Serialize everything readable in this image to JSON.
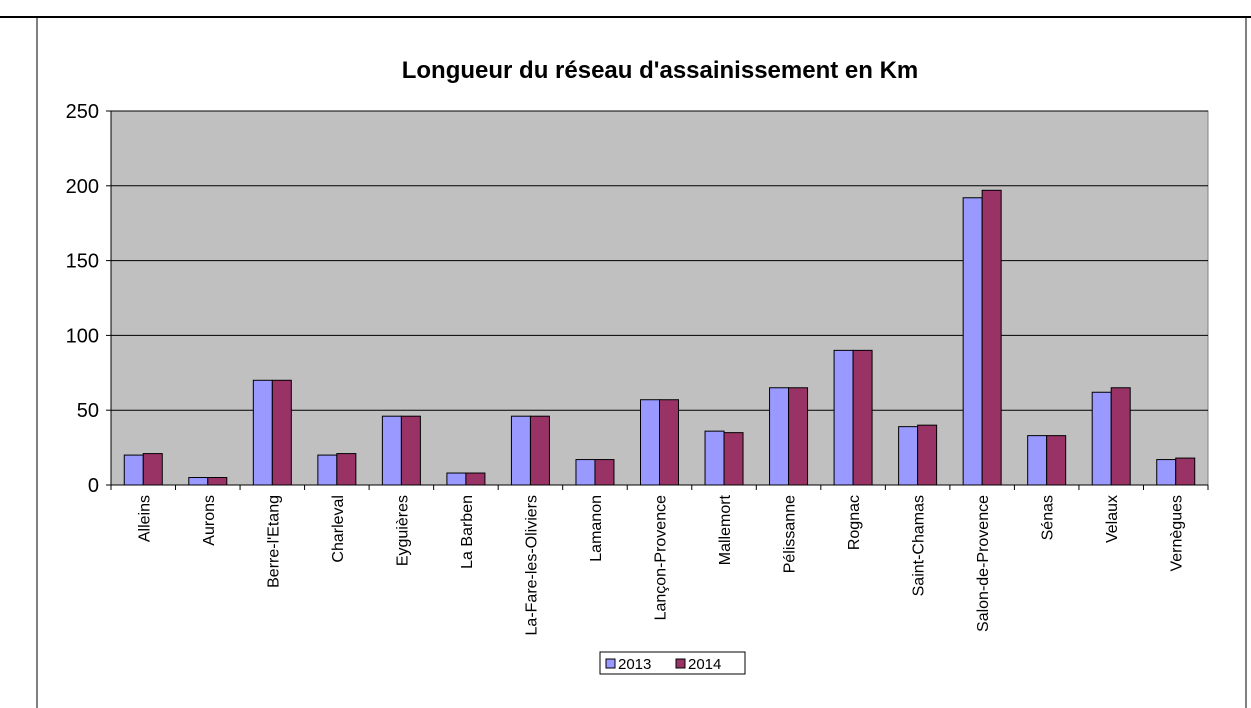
{
  "chart_data": {
    "type": "bar",
    "title": "Longueur du réseau d'assainissement en Km",
    "categories": [
      "Alleins",
      "Aurons",
      "Berre-l'Etang",
      "Charleval",
      "Eyguières",
      "La Barben",
      "La-Fare-les-Oliviers",
      "Lamanon",
      "Lançon-Provence",
      "Mallemort",
      "Pélissanne",
      "Rognac",
      "Saint-Chamas",
      "Salon-de-Provence",
      "Sénas",
      "Velaux",
      "Vernègues"
    ],
    "series": [
      {
        "name": "2013",
        "color": "#9999ff",
        "values": [
          20,
          5,
          70,
          20,
          46,
          8,
          46,
          17,
          57,
          36,
          65,
          90,
          39,
          192,
          33,
          62,
          17
        ]
      },
      {
        "name": "2014",
        "color": "#993366",
        "values": [
          21,
          5,
          70,
          21,
          46,
          8,
          46,
          17,
          57,
          35,
          65,
          90,
          40,
          197,
          33,
          65,
          18
        ]
      }
    ],
    "ylim": [
      0,
      250
    ],
    "yticks": [
      0,
      50,
      100,
      150,
      200,
      250
    ],
    "grid": true,
    "legend": "bottom"
  }
}
